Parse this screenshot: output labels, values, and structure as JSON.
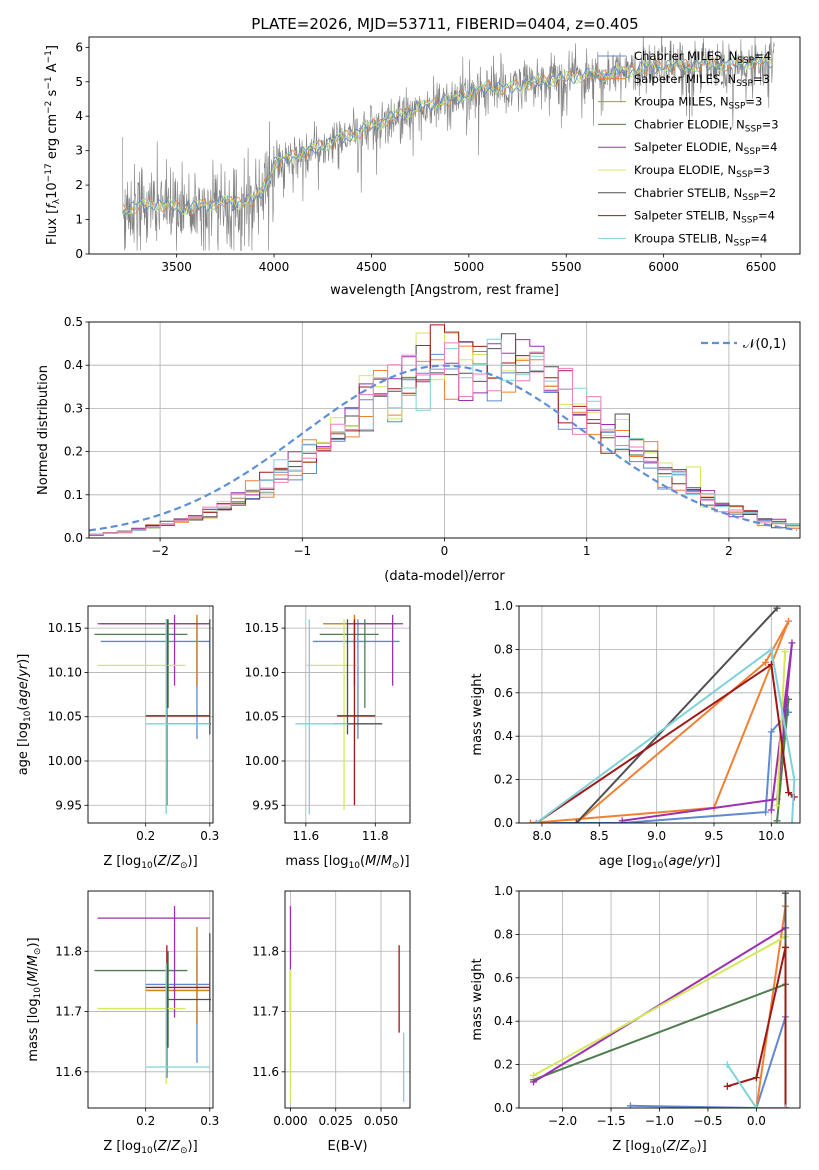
{
  "figure_title": "PLATE=2026, MJD=53711, FIBERID=0404, z=0.405",
  "colors": {
    "Chabrier MILES": "#5f89d1",
    "Salpeter MILES": "#f08033",
    "Kroupa MILES": "#c98a1a",
    "Chabrier ELODIE": "#4f7d4f",
    "Salpeter ELODIE": "#9b30b0",
    "Kroupa ELODIE": "#d4e85a",
    "Chabrier STELIB": "#505050",
    "Salpeter STELIB": "#a01818",
    "Kroupa STELIB": "#7fd3d8",
    "residual_pink": "#f07fb8",
    "normal": "#5f8fd6"
  },
  "chart_data": [
    {
      "id": "spectrum",
      "type": "line",
      "title": "PLATE=2026, MJD=53711, FIBERID=0404, z=0.405",
      "xlabel": "wavelength [Angstrom, rest frame]",
      "ylabel": "Flux [f_λ10^-17 erg cm^-2 s^-1 A^-1]",
      "xlim": [
        3050,
        6700
      ],
      "ylim": [
        0,
        6.3
      ],
      "xticks": [
        3500,
        4000,
        4500,
        5000,
        5500,
        6000,
        6500
      ],
      "yticks": [
        0,
        1,
        2,
        3,
        4,
        5,
        6
      ],
      "continuum": {
        "x": [
          3220,
          3300,
          3400,
          3500,
          3600,
          3700,
          3800,
          3900,
          3950,
          4000,
          4100,
          4200,
          4300,
          4400,
          4500,
          4600,
          4700,
          4800,
          4900,
          5000,
          5100,
          5200,
          5300,
          5400,
          5500,
          5600,
          5700,
          5800,
          5900,
          6000,
          6100,
          6200,
          6300,
          6400,
          6500,
          6560
        ],
        "y": [
          1.25,
          1.4,
          1.45,
          1.35,
          1.35,
          1.5,
          1.5,
          1.55,
          1.95,
          2.6,
          2.85,
          3.05,
          3.25,
          3.45,
          3.7,
          3.95,
          4.15,
          4.35,
          4.45,
          4.65,
          4.85,
          4.8,
          4.95,
          5.05,
          5.1,
          5.2,
          5.2,
          5.3,
          5.4,
          5.45,
          5.45,
          5.5,
          5.5,
          5.55,
          5.6,
          5.6
        ]
      },
      "legend": [
        "Chabrier MILES, N_SSP=4",
        "Salpeter MILES, N_SSP=3",
        "Kroupa MILES, N_SSP=3",
        "Chabrier ELODIE, N_SSP=3",
        "Salpeter ELODIE, N_SSP=4",
        "Kroupa ELODIE, N_SSP=3",
        "Chabrier STELIB, N_SSP=2",
        "Salpeter STELIB, N_SSP=4",
        "Kroupa STELIB, N_SSP=4"
      ],
      "legend_placement": "upper-right"
    },
    {
      "id": "residuals",
      "type": "line",
      "xlabel": "(data-model)/error",
      "ylabel": "Normed distribution",
      "xlim": [
        -2.5,
        2.5
      ],
      "ylim": [
        0,
        0.5
      ],
      "xticks": [
        -2,
        -1,
        0,
        1,
        2
      ],
      "yticks": [
        0.0,
        0.1,
        0.2,
        0.3,
        0.4,
        0.5
      ],
      "grid": true,
      "histogram_bins": [
        -2.5,
        2.5,
        0.1
      ],
      "normal_curve": {
        "mean": 0,
        "sigma": 1,
        "label": "𝒩(0,1)",
        "style": "dashed"
      },
      "legend_placement": "upper-right"
    },
    {
      "id": "age_vs_Z",
      "type": "scatter",
      "xlabel": "Z [log10(Z/Z⊙)]",
      "ylabel": "age [log10(age/yr)]",
      "xlim": [
        0.11,
        0.305
      ],
      "ylim": [
        9.93,
        10.175
      ],
      "xticks": [
        0.2,
        0.3
      ],
      "yticks": [
        9.95,
        10.0,
        10.05,
        10.1,
        10.15
      ],
      "grid": true,
      "points": [
        {
          "model": "Chabrier MILES",
          "x": 0.28,
          "y": 10.135,
          "xerr": [
            0.13,
            0.3
          ],
          "yerr": [
            10.025,
            10.16
          ]
        },
        {
          "model": "Salpeter MILES",
          "x": 0.28,
          "y": 10.155,
          "xerr": [
            0.13,
            0.3
          ],
          "yerr": [
            10.085,
            10.165
          ]
        },
        {
          "model": "Kroupa MILES",
          "x": 0.28,
          "y": 10.155,
          "xerr": [
            0.13,
            0.3
          ],
          "yerr": [
            10.085,
            10.165
          ]
        },
        {
          "model": "Chabrier ELODIE",
          "x": 0.235,
          "y": 10.143,
          "xerr": [
            0.12,
            0.265
          ],
          "yerr": [
            10.06,
            10.16
          ]
        },
        {
          "model": "Salpeter ELODIE",
          "x": 0.245,
          "y": 10.155,
          "xerr": [
            0.125,
            0.3
          ],
          "yerr": [
            10.085,
            10.165
          ]
        },
        {
          "model": "Kroupa ELODIE",
          "x": 0.232,
          "y": 10.108,
          "xerr": [
            0.125,
            0.262
          ],
          "yerr": [
            9.945,
            10.16
          ]
        },
        {
          "model": "Chabrier STELIB",
          "x": 0.3,
          "y": 10.042,
          "xerr": [
            0.232,
            0.302
          ],
          "yerr": [
            10.03,
            10.16
          ]
        },
        {
          "model": "Salpeter STELIB",
          "x": 0.233,
          "y": 10.051,
          "xerr": [
            0.2,
            0.3
          ],
          "yerr": [
            9.95,
            10.16
          ]
        },
        {
          "model": "Kroupa STELIB",
          "x": 0.232,
          "y": 10.042,
          "xerr": [
            0.2,
            0.3
          ],
          "yerr": [
            9.94,
            10.16
          ]
        }
      ]
    },
    {
      "id": "age_vs_mass",
      "type": "scatter",
      "xlabel": "mass [log10(M/M⊙)]",
      "ylabel": "",
      "xlim": [
        11.54,
        11.9
      ],
      "ylim": [
        9.93,
        10.175
      ],
      "xticks": [
        11.6,
        11.8
      ],
      "yticks": [
        9.95,
        10.0,
        10.05,
        10.1,
        10.15
      ],
      "grid": true,
      "points": [
        {
          "model": "Chabrier MILES",
          "x": 11.75,
          "y": 10.135,
          "xerr": [
            11.62,
            11.87
          ],
          "yerr": [
            10.025,
            10.16
          ]
        },
        {
          "model": "Salpeter MILES",
          "x": 11.74,
          "y": 10.155,
          "xerr": [
            11.65,
            11.86
          ],
          "yerr": [
            10.085,
            10.165
          ]
        },
        {
          "model": "Kroupa MILES",
          "x": 11.74,
          "y": 10.155,
          "xerr": [
            11.65,
            11.86
          ],
          "yerr": [
            10.085,
            10.165
          ]
        },
        {
          "model": "Chabrier ELODIE",
          "x": 11.77,
          "y": 10.143,
          "xerr": [
            11.64,
            11.81
          ],
          "yerr": [
            10.06,
            10.16
          ]
        },
        {
          "model": "Salpeter ELODIE",
          "x": 11.85,
          "y": 10.155,
          "xerr": [
            11.72,
            11.88
          ],
          "yerr": [
            10.085,
            10.165
          ]
        },
        {
          "model": "Kroupa ELODIE",
          "x": 11.71,
          "y": 10.108,
          "xerr": [
            11.6,
            11.75
          ],
          "yerr": [
            9.945,
            10.16
          ]
        },
        {
          "model": "Chabrier STELIB",
          "x": 11.72,
          "y": 10.042,
          "xerr": [
            11.68,
            11.82
          ],
          "yerr": [
            10.03,
            10.16
          ]
        },
        {
          "model": "Salpeter STELIB",
          "x": 11.74,
          "y": 10.051,
          "xerr": [
            11.69,
            11.8
          ],
          "yerr": [
            9.95,
            10.16
          ]
        },
        {
          "model": "Kroupa STELIB",
          "x": 11.61,
          "y": 10.042,
          "xerr": [
            11.57,
            11.72
          ],
          "yerr": [
            9.94,
            10.16
          ]
        }
      ]
    },
    {
      "id": "weight_vs_age",
      "type": "line",
      "xlabel": "age [log10(age/yr)]",
      "ylabel": "mass weight",
      "xlim": [
        7.8,
        10.25
      ],
      "ylim": [
        0,
        1
      ],
      "xticks": [
        8.0,
        8.5,
        9.0,
        9.5,
        10.0
      ],
      "yticks": [
        0.0,
        0.2,
        0.4,
        0.6,
        0.8,
        1.0
      ],
      "grid": true,
      "series": [
        {
          "model": "Chabrier MILES",
          "x": [
            7.95,
            8.7,
            9.95,
            10.0,
            10.15
          ],
          "y": [
            0.0,
            0.0,
            0.05,
            0.42,
            0.51
          ]
        },
        {
          "model": "Salpeter MILES",
          "x": [
            7.9,
            9.5,
            10.15,
            9.95,
            8.3
          ],
          "y": [
            0.0,
            0.07,
            0.93,
            0.74,
            0.0
          ]
        },
        {
          "model": "Chabrier ELODIE",
          "x": [
            10.05,
            10.15
          ],
          "y": [
            0.01,
            0.57
          ]
        },
        {
          "model": "Salpeter ELODIE",
          "x": [
            8.7,
            10.05,
            10.18,
            10.0
          ],
          "y": [
            0.01,
            0.11,
            0.83,
            0.06
          ]
        },
        {
          "model": "Kroupa ELODIE",
          "x": [
            10.05,
            10.12
          ],
          "y": [
            0.08,
            0.79
          ]
        },
        {
          "model": "Chabrier STELIB",
          "x": [
            8.3,
            10.05
          ],
          "y": [
            0.0,
            0.99
          ]
        },
        {
          "model": "Salpeter STELIB",
          "x": [
            7.95,
            10.0,
            10.15,
            10.2
          ],
          "y": [
            0.0,
            0.73,
            0.14,
            0.12
          ]
        },
        {
          "model": "Kroupa STELIB",
          "x": [
            7.95,
            10.0,
            10.2,
            10.18
          ],
          "y": [
            0.0,
            0.8,
            0.2,
            0.0
          ]
        }
      ]
    },
    {
      "id": "mass_vs_Z",
      "type": "scatter",
      "xlabel": "Z [log10(Z/Z⊙)]",
      "ylabel": "mass [log10(M/M⊙)]",
      "xlim": [
        0.11,
        0.305
      ],
      "ylim": [
        11.54,
        11.9
      ],
      "xticks": [
        0.2,
        0.3
      ],
      "yticks": [
        11.6,
        11.7,
        11.8
      ],
      "grid": true,
      "points": [
        {
          "model": "Chabrier MILES",
          "x": 0.28,
          "y": 11.745,
          "xerr": [
            0.2,
            0.3
          ],
          "yerr": [
            11.615,
            11.79
          ]
        },
        {
          "model": "Salpeter MILES",
          "x": 0.28,
          "y": 11.735,
          "xerr": [
            0.2,
            0.3
          ],
          "yerr": [
            11.68,
            11.84
          ]
        },
        {
          "model": "Kroupa MILES",
          "x": 0.28,
          "y": 11.735,
          "xerr": [
            0.2,
            0.3
          ],
          "yerr": [
            11.68,
            11.84
          ]
        },
        {
          "model": "Chabrier ELODIE",
          "x": 0.235,
          "y": 11.768,
          "xerr": [
            0.12,
            0.265
          ],
          "yerr": [
            11.64,
            11.8
          ]
        },
        {
          "model": "Salpeter ELODIE",
          "x": 0.245,
          "y": 11.855,
          "xerr": [
            0.125,
            0.3
          ],
          "yerr": [
            11.69,
            11.875
          ]
        },
        {
          "model": "Kroupa ELODIE",
          "x": 0.232,
          "y": 11.705,
          "xerr": [
            0.125,
            0.262
          ],
          "yerr": [
            11.58,
            11.76
          ]
        },
        {
          "model": "Chabrier STELIB",
          "x": 0.3,
          "y": 11.72,
          "xerr": [
            0.232,
            0.302
          ],
          "yerr": [
            11.7,
            11.83
          ]
        },
        {
          "model": "Salpeter STELIB",
          "x": 0.233,
          "y": 11.74,
          "xerr": [
            0.2,
            0.3
          ],
          "yerr": [
            11.59,
            11.81
          ]
        },
        {
          "model": "Kroupa STELIB",
          "x": 0.232,
          "y": 11.608,
          "xerr": [
            0.2,
            0.3
          ],
          "yerr": [
            11.59,
            11.78
          ]
        }
      ]
    },
    {
      "id": "mass_vs_ebv",
      "type": "scatter",
      "xlabel": "E(B-V)",
      "ylabel": "",
      "xlim": [
        -0.003,
        0.066
      ],
      "ylim": [
        11.54,
        11.9
      ],
      "xticks": [
        0.0,
        0.025,
        0.05
      ],
      "yticks": [
        11.6,
        11.7,
        11.8
      ],
      "grid": true,
      "points": [
        {
          "model": "Salpeter ELODIE",
          "x": 0.0,
          "y": 11.8,
          "xerr": [
            0.0,
            0.0
          ],
          "yerr": [
            11.7,
            11.875
          ]
        },
        {
          "model": "Kroupa ELODIE",
          "x": 0.0,
          "y": 11.6,
          "xerr": [
            0.0,
            0.0
          ],
          "yerr": [
            11.55,
            11.77
          ]
        },
        {
          "model": "Salpeter STELIB",
          "x": 0.06,
          "y": 11.74,
          "xerr": [
            0.06,
            0.06
          ],
          "yerr": [
            11.665,
            11.81
          ]
        },
        {
          "model": "Kroupa STELIB",
          "x": 0.0625,
          "y": 11.6,
          "xerr": [
            0.0625,
            0.0625
          ],
          "yerr": [
            11.55,
            11.665
          ]
        }
      ]
    },
    {
      "id": "weight_vs_Z",
      "type": "line",
      "xlabel": "Z [log10(Z/Z⊙)]",
      "ylabel": "mass weight",
      "xlim": [
        -2.45,
        0.45
      ],
      "ylim": [
        0,
        1
      ],
      "xticks": [
        -2.0,
        -1.5,
        -1.0,
        -0.5,
        0.0
      ],
      "yticks": [
        0.0,
        0.2,
        0.4,
        0.6,
        0.8,
        1.0
      ],
      "grid": true,
      "series": [
        {
          "model": "Chabrier MILES",
          "x": [
            -1.3,
            0.0,
            0.3
          ],
          "y": [
            0.01,
            0.0,
            0.42
          ]
        },
        {
          "model": "Salpeter MILES",
          "x": [
            0.0,
            0.3,
            0.3
          ],
          "y": [
            0.0,
            0.93,
            0.74
          ]
        },
        {
          "model": "Chabrier ELODIE",
          "x": [
            -2.3,
            0.3
          ],
          "y": [
            0.13,
            0.57
          ]
        },
        {
          "model": "Salpeter ELODIE",
          "x": [
            -2.3,
            0.3,
            0.3
          ],
          "y": [
            0.12,
            0.83,
            0.0
          ]
        },
        {
          "model": "Kroupa ELODIE",
          "x": [
            -2.3,
            0.3
          ],
          "y": [
            0.15,
            0.79
          ]
        },
        {
          "model": "Chabrier STELIB",
          "x": [
            0.3,
            0.3
          ],
          "y": [
            0.0,
            0.99
          ]
        },
        {
          "model": "Salpeter STELIB",
          "x": [
            -0.3,
            0.0,
            0.3,
            0.3
          ],
          "y": [
            0.1,
            0.14,
            0.74,
            0.0
          ]
        },
        {
          "model": "Kroupa STELIB",
          "x": [
            -0.3,
            0.0,
            0.3
          ],
          "y": [
            0.2,
            0.0,
            0.0
          ]
        }
      ]
    }
  ]
}
